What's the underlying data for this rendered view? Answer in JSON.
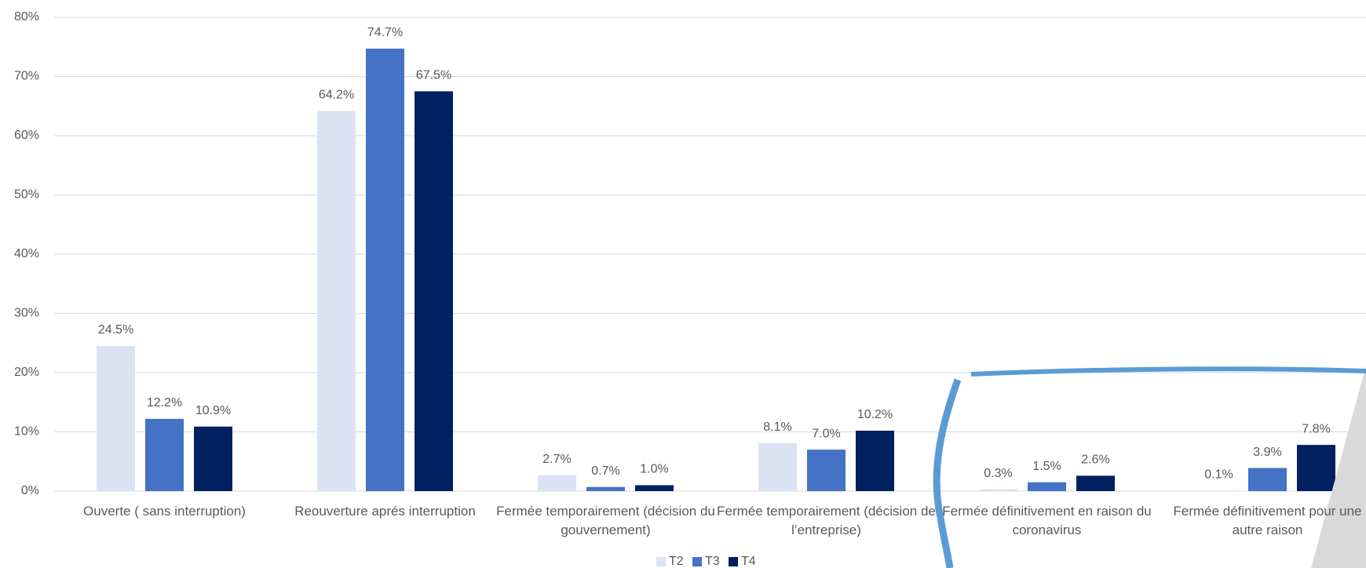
{
  "chart_data": {
    "type": "bar",
    "categories": [
      "Ouverte ( sans interruption)",
      "Reouverture aprés interruption",
      "Fermée temporairement (décision du gouvernement)",
      "Fermée temporairement (décision de l’entreprise)",
      "Fermée définitivement en raison du coronavirus",
      "Fermée définitivement pour une autre raison"
    ],
    "series": [
      {
        "name": "T2",
        "color": "#dae3f3",
        "values": [
          24.5,
          64.2,
          2.7,
          8.1,
          0.3,
          0.1
        ],
        "value_labels": [
          "24.5%",
          "64.2%",
          "2.7%",
          "8.1%",
          "0.3%",
          "0.1%"
        ]
      },
      {
        "name": "T3",
        "color": "#4472c4",
        "values": [
          12.2,
          74.7,
          0.7,
          7.0,
          1.5,
          3.9
        ],
        "value_labels": [
          "12.2%",
          "74.7%",
          "0.7%",
          "7.0%",
          "1.5%",
          "3.9%"
        ]
      },
      {
        "name": "T4",
        "color": "#002060",
        "values": [
          10.9,
          67.5,
          1.0,
          10.2,
          2.6,
          7.8
        ],
        "value_labels": [
          "10.9%",
          "67.5%",
          "1.0%",
          "10.2%",
          "2.6%",
          "7.8%"
        ]
      }
    ],
    "ylim": [
      0,
      80
    ],
    "yticks": [
      {
        "value": 0,
        "label": "0%"
      },
      {
        "value": 10,
        "label": "10%"
      },
      {
        "value": 20,
        "label": "20%"
      },
      {
        "value": 30,
        "label": "30%"
      },
      {
        "value": 40,
        "label": "40%"
      },
      {
        "value": 50,
        "label": "50%"
      },
      {
        "value": 60,
        "label": "60%"
      },
      {
        "value": 70,
        "label": "70%"
      },
      {
        "value": 80,
        "label": "80%"
      }
    ],
    "grid": true,
    "legend": "bottom"
  }
}
